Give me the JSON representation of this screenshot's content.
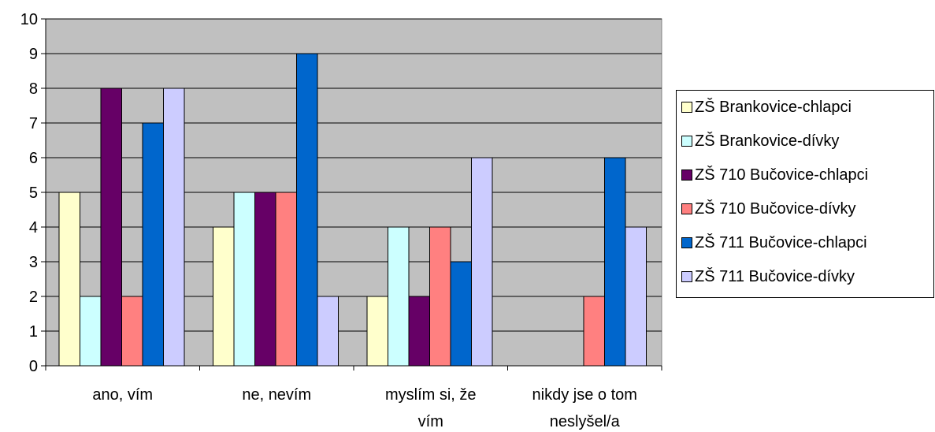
{
  "chart_data": {
    "type": "bar",
    "categories": [
      [
        "ano, vím"
      ],
      [
        "ne, nevím"
      ],
      [
        "myslím si, že",
        "vím"
      ],
      [
        "nikdy jse o tom",
        "neslyšel/a"
      ]
    ],
    "ylim": [
      0,
      10
    ],
    "yticks": [
      "0",
      "1",
      "2",
      "3",
      "4",
      "5",
      "6",
      "7",
      "8",
      "9",
      "10"
    ],
    "grid": true,
    "legend_position": "right",
    "plot_background": "#C0C0C0",
    "series": [
      {
        "name": "ZŠ Brankovice-chlapci",
        "color": "#FFFFCC",
        "values": [
          5,
          4,
          2,
          0
        ]
      },
      {
        "name": "ZŠ Brankovice-dívky",
        "color": "#CCFFFF",
        "values": [
          2,
          5,
          4,
          0
        ]
      },
      {
        "name": "ZŠ 710 Bučovice-chlapci",
        "color": "#660066",
        "values": [
          8,
          5,
          2,
          0
        ]
      },
      {
        "name": "ZŠ 710 Bučovice-dívky",
        "color": "#FF8080",
        "values": [
          2,
          5,
          4,
          2
        ]
      },
      {
        "name": "ZŠ 711 Bučovice-chlapci",
        "color": "#0066CC",
        "values": [
          7,
          9,
          3,
          6
        ]
      },
      {
        "name": "ZŠ 711 Bučovice-dívky",
        "color": "#CCCCFF",
        "values": [
          8,
          2,
          6,
          4
        ]
      }
    ]
  }
}
